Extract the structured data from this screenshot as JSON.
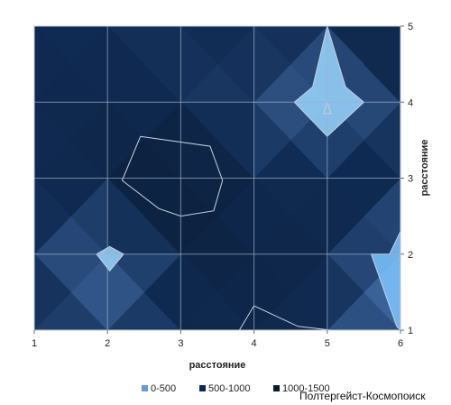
{
  "chart_data": {
    "type": "heatmap",
    "title": "",
    "xlabel": "расстояние",
    "ylabel": "расстояние",
    "xlim": [
      1,
      6
    ],
    "ylim": [
      1,
      5
    ],
    "x_ticks": [
      "1",
      "2",
      "3",
      "4",
      "5",
      "6"
    ],
    "y_ticks": [
      "1",
      "2",
      "3",
      "4",
      "5"
    ],
    "grid": true,
    "legend_position": "bottom",
    "band_colors": [
      "#6699dd",
      "#0f2a52",
      "#0b1b33"
    ],
    "legend": [
      {
        "label": "0-500",
        "color": "#6699dd"
      },
      {
        "label": "500-1000",
        "color": "#0f2a52"
      },
      {
        "label": "1000-1500",
        "color": "#0b1b33"
      }
    ],
    "series": [
      {
        "label": "0-500",
        "color": "#6699dd"
      },
      {
        "label": "500-1000",
        "color": "#0f2a52"
      },
      {
        "label": "1000-1500",
        "color": "#0b1b33"
      }
    ],
    "x": [
      1,
      2,
      3,
      4,
      5,
      6
    ],
    "y": [
      1,
      2,
      3,
      4,
      5
    ],
    "values": [
      [
        700,
        600,
        700,
        900,
        700,
        250
      ],
      [
        800,
        200,
        1000,
        1100,
        800,
        350
      ],
      [
        700,
        1000,
        1450,
        700,
        900,
        700
      ],
      [
        800,
        900,
        700,
        600,
        300,
        700
      ],
      [
        750,
        700,
        700,
        800,
        700,
        1050
      ]
    ]
  },
  "watermark": "Полтергейст-Космопоиск"
}
